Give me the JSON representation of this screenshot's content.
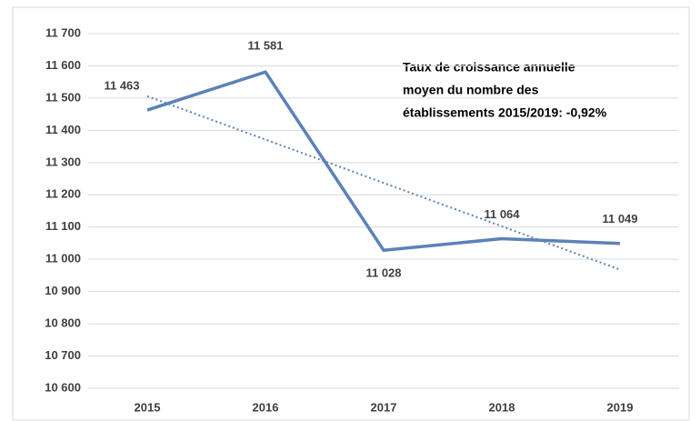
{
  "chart_data": {
    "type": "line",
    "categories": [
      "2015",
      "2016",
      "2017",
      "2018",
      "2019"
    ],
    "series": [
      {
        "color": "#5b82b8",
        "values": [
          11463,
          11581,
          11028,
          11064,
          11049
        ],
        "value_labels": [
          "11 463",
          "11 581",
          "11 028",
          "11 064",
          "11 049"
        ]
      }
    ],
    "trendline": "linear",
    "ylim": [
      10600,
      11700
    ],
    "yticks": [
      {
        "value": 10600,
        "label": "10 600"
      },
      {
        "value": 10700,
        "label": "10 700"
      },
      {
        "value": 10800,
        "label": "10 800"
      },
      {
        "value": 10900,
        "label": "10 900"
      },
      {
        "value": 11000,
        "label": "11 000"
      },
      {
        "value": 11100,
        "label": "11 100"
      },
      {
        "value": 11200,
        "label": "11 200"
      },
      {
        "value": 11300,
        "label": "11 300"
      },
      {
        "value": 11400,
        "label": "11 400"
      },
      {
        "value": 11500,
        "label": "11 500"
      },
      {
        "value": 11600,
        "label": "11 600"
      },
      {
        "value": 11700,
        "label": "11 700"
      }
    ],
    "grid": true,
    "annotation": [
      "Taux de croissance  annuelle",
      "moyen du nombre des",
      "établissements 2015/2019: -0,92%"
    ]
  }
}
